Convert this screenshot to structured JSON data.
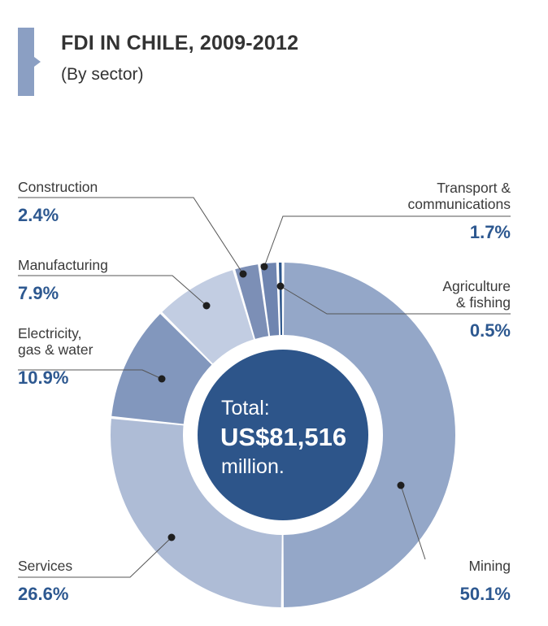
{
  "header": {
    "title": "FDI IN CHILE, 2009-2012",
    "subtitle": "(By sector)"
  },
  "center": {
    "line1": "Total:",
    "line2": "US$81,516",
    "line3": "million."
  },
  "chart_data": {
    "type": "pie",
    "title": "FDI IN CHILE, 2009-2012",
    "subtitle": "(By sector)",
    "unit": "%",
    "slices": [
      {
        "name_lines": [
          "Mining"
        ],
        "value": 50.1,
        "label": "50.1%",
        "color": "#94a7c8"
      },
      {
        "name_lines": [
          "Services"
        ],
        "value": 26.6,
        "label": "26.6%",
        "color": "#aebcd6"
      },
      {
        "name_lines": [
          "Electricity,",
          "gas & water"
        ],
        "value": 10.9,
        "label": "10.9%",
        "color": "#8297bd"
      },
      {
        "name_lines": [
          "Manufacturing"
        ],
        "value": 7.9,
        "label": "7.9%",
        "color": "#c2cde2"
      },
      {
        "name_lines": [
          "Construction"
        ],
        "value": 2.4,
        "label": "2.4%",
        "color": "#7c8fb6"
      },
      {
        "name_lines": [
          "Transport &",
          "communications"
        ],
        "value": 1.7,
        "label": "1.7%",
        "color": "#6f85b0"
      },
      {
        "name_lines": [
          "Agriculture",
          "& fishing"
        ],
        "value": 0.5,
        "label": "0.5%",
        "color": "#2d568c"
      }
    ]
  }
}
